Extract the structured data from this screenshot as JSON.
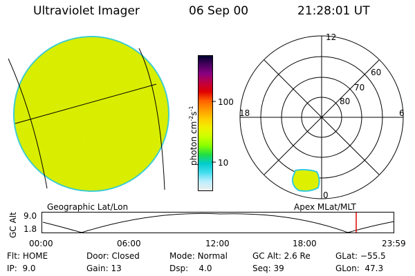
{
  "header": {
    "instrument": "Ultraviolet Imager",
    "date": "06 Sep 00",
    "time": "21:28:01 UT"
  },
  "colorbar": {
    "label_main": "photon cm",
    "label_exp1": "-2",
    "label_s": "s",
    "label_exp2": "-1",
    "tick_100": "100",
    "tick_10": "10",
    "colors": [
      "#000030",
      "#4a0060",
      "#8a0080",
      "#c00040",
      "#e00000",
      "#ff6000",
      "#ff9900",
      "#ffcc00",
      "#f0f000",
      "#ccff00",
      "#88ff00",
      "#22dd44",
      "#00cccc",
      "#44ddee",
      "#bbeeff",
      "#eeeeee"
    ]
  },
  "globe": {
    "fill_color": "#ddf000",
    "edge_color": "#33ccdd",
    "caption": "Geographic Lat/Lon"
  },
  "polar": {
    "caption": "Apex MLat/MLT",
    "mlt_labels": {
      "top": "12",
      "left": "18",
      "right": "6",
      "bottom": "0"
    },
    "lat_labels": {
      "l60": "60",
      "l70": "70",
      "l80": "80"
    },
    "blob_color": "#ddf000"
  },
  "timeline": {
    "y_axis_label": "GC Alt",
    "y_ticks": [
      "9.0",
      "1.8"
    ],
    "x_ticks": [
      "00:00",
      "06:00",
      "12:00",
      "18:00",
      "23:59"
    ],
    "marker_color": "#dd0000"
  },
  "status": {
    "flt_label": "Flt:",
    "flt_value": "HOME",
    "ip_label": "IP:",
    "ip_value": "9.0",
    "door_label": "Door:",
    "door_value": "Closed",
    "gain_label": "Gain:",
    "gain_value": "13",
    "mode_label": "Mode:",
    "mode_value": "Normal",
    "dsp_label": "Dsp:",
    "dsp_value": "4.0",
    "gcalt_label": "GC Alt:",
    "gcalt_value": "2.6 Re",
    "seq_label": "Seq:",
    "seq_value": "39",
    "glat_label": "GLat:",
    "glat_value": "−55.5",
    "glon_label": "GLon:",
    "glon_value": "47.3"
  }
}
